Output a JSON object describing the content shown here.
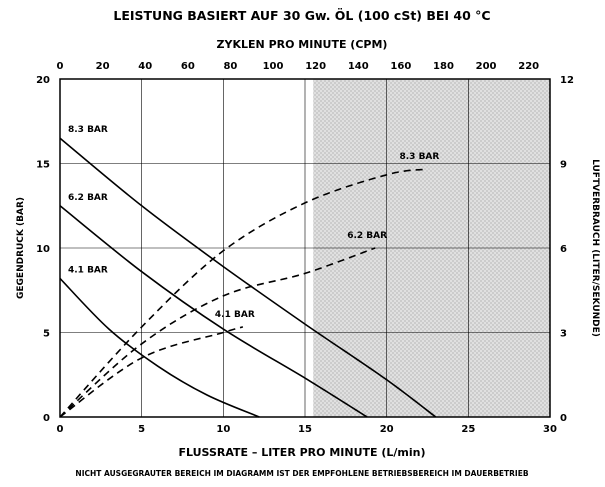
{
  "chart_data": {
    "type": "line",
    "title": "LEISTUNG BASIERT AUF 30 Gw. ÖL (100 cSt) BEI 40 °C",
    "top_axis_label": "ZYKLEN PRO MINUTE (CPM)",
    "xlabel": "FLUSSRATE – LITER PRO MINUTE (L/min)",
    "ylabel_left": "GEGENDRUCK (BAR)",
    "ylabel_right": "LUFTVERBRAUCH (LITER/SEKUNDE)",
    "footnote": "NICHT AUSGEGRAUTER BEREICH IM DIAGRAMM IST DER EMPFOHLENE BETRIEBSBEREICH IM DAUERBETRIEB",
    "xlim": [
      0,
      30
    ],
    "ylim": [
      0,
      20
    ],
    "y2lim": [
      0,
      12
    ],
    "top_xlim": [
      0,
      230
    ],
    "x_ticks": [
      "0",
      "5",
      "10",
      "15",
      "20",
      "25",
      "30"
    ],
    "y_ticks": [
      "0",
      "5",
      "10",
      "15",
      "20"
    ],
    "y2_ticks": [
      "0",
      "3",
      "6",
      "9",
      "12"
    ],
    "top_ticks": [
      "0",
      "20",
      "40",
      "60",
      "80",
      "100",
      "120",
      "140",
      "160",
      "180",
      "200",
      "220"
    ],
    "grid": true,
    "shaded_region": {
      "x_start": 15.5,
      "x_end": 30,
      "color": "#d9d9d9"
    },
    "series": [
      {
        "name": "8.3 BAR",
        "kind": "pressure",
        "axis": "left",
        "style": "solid",
        "x": [
          0,
          5,
          10,
          15,
          20,
          23
        ],
        "y": [
          16.5,
          12.5,
          8.9,
          5.5,
          2.2,
          0
        ]
      },
      {
        "name": "6.2 BAR",
        "kind": "pressure",
        "axis": "left",
        "style": "solid",
        "x": [
          0,
          5,
          10,
          15,
          18.8
        ],
        "y": [
          12.5,
          8.6,
          5.2,
          2.3,
          0
        ]
      },
      {
        "name": "4.1 BAR",
        "kind": "pressure",
        "axis": "left",
        "style": "solid",
        "x": [
          0,
          3,
          6,
          9,
          12.2
        ],
        "y": [
          8.2,
          5.2,
          3.0,
          1.3,
          0
        ]
      },
      {
        "name": "8.3 BAR",
        "kind": "air",
        "axis": "right",
        "style": "dashed",
        "x": [
          0,
          5,
          10,
          15,
          20,
          22.5
        ],
        "y": [
          0,
          3.2,
          5.9,
          7.6,
          8.6,
          8.8
        ]
      },
      {
        "name": "6.2 BAR",
        "kind": "air",
        "axis": "right",
        "style": "dashed",
        "x": [
          0,
          5,
          10,
          15,
          19.3
        ],
        "y": [
          0,
          2.6,
          4.3,
          5.1,
          6.0
        ]
      },
      {
        "name": "4.1 BAR",
        "kind": "air",
        "axis": "right",
        "style": "dashed",
        "x": [
          0,
          5,
          10,
          11.2
        ],
        "y": [
          0,
          2.1,
          3.0,
          3.2
        ]
      }
    ],
    "colors": {
      "line": "#000000",
      "grid": "#000000",
      "shade": "#d9d9d9"
    }
  }
}
